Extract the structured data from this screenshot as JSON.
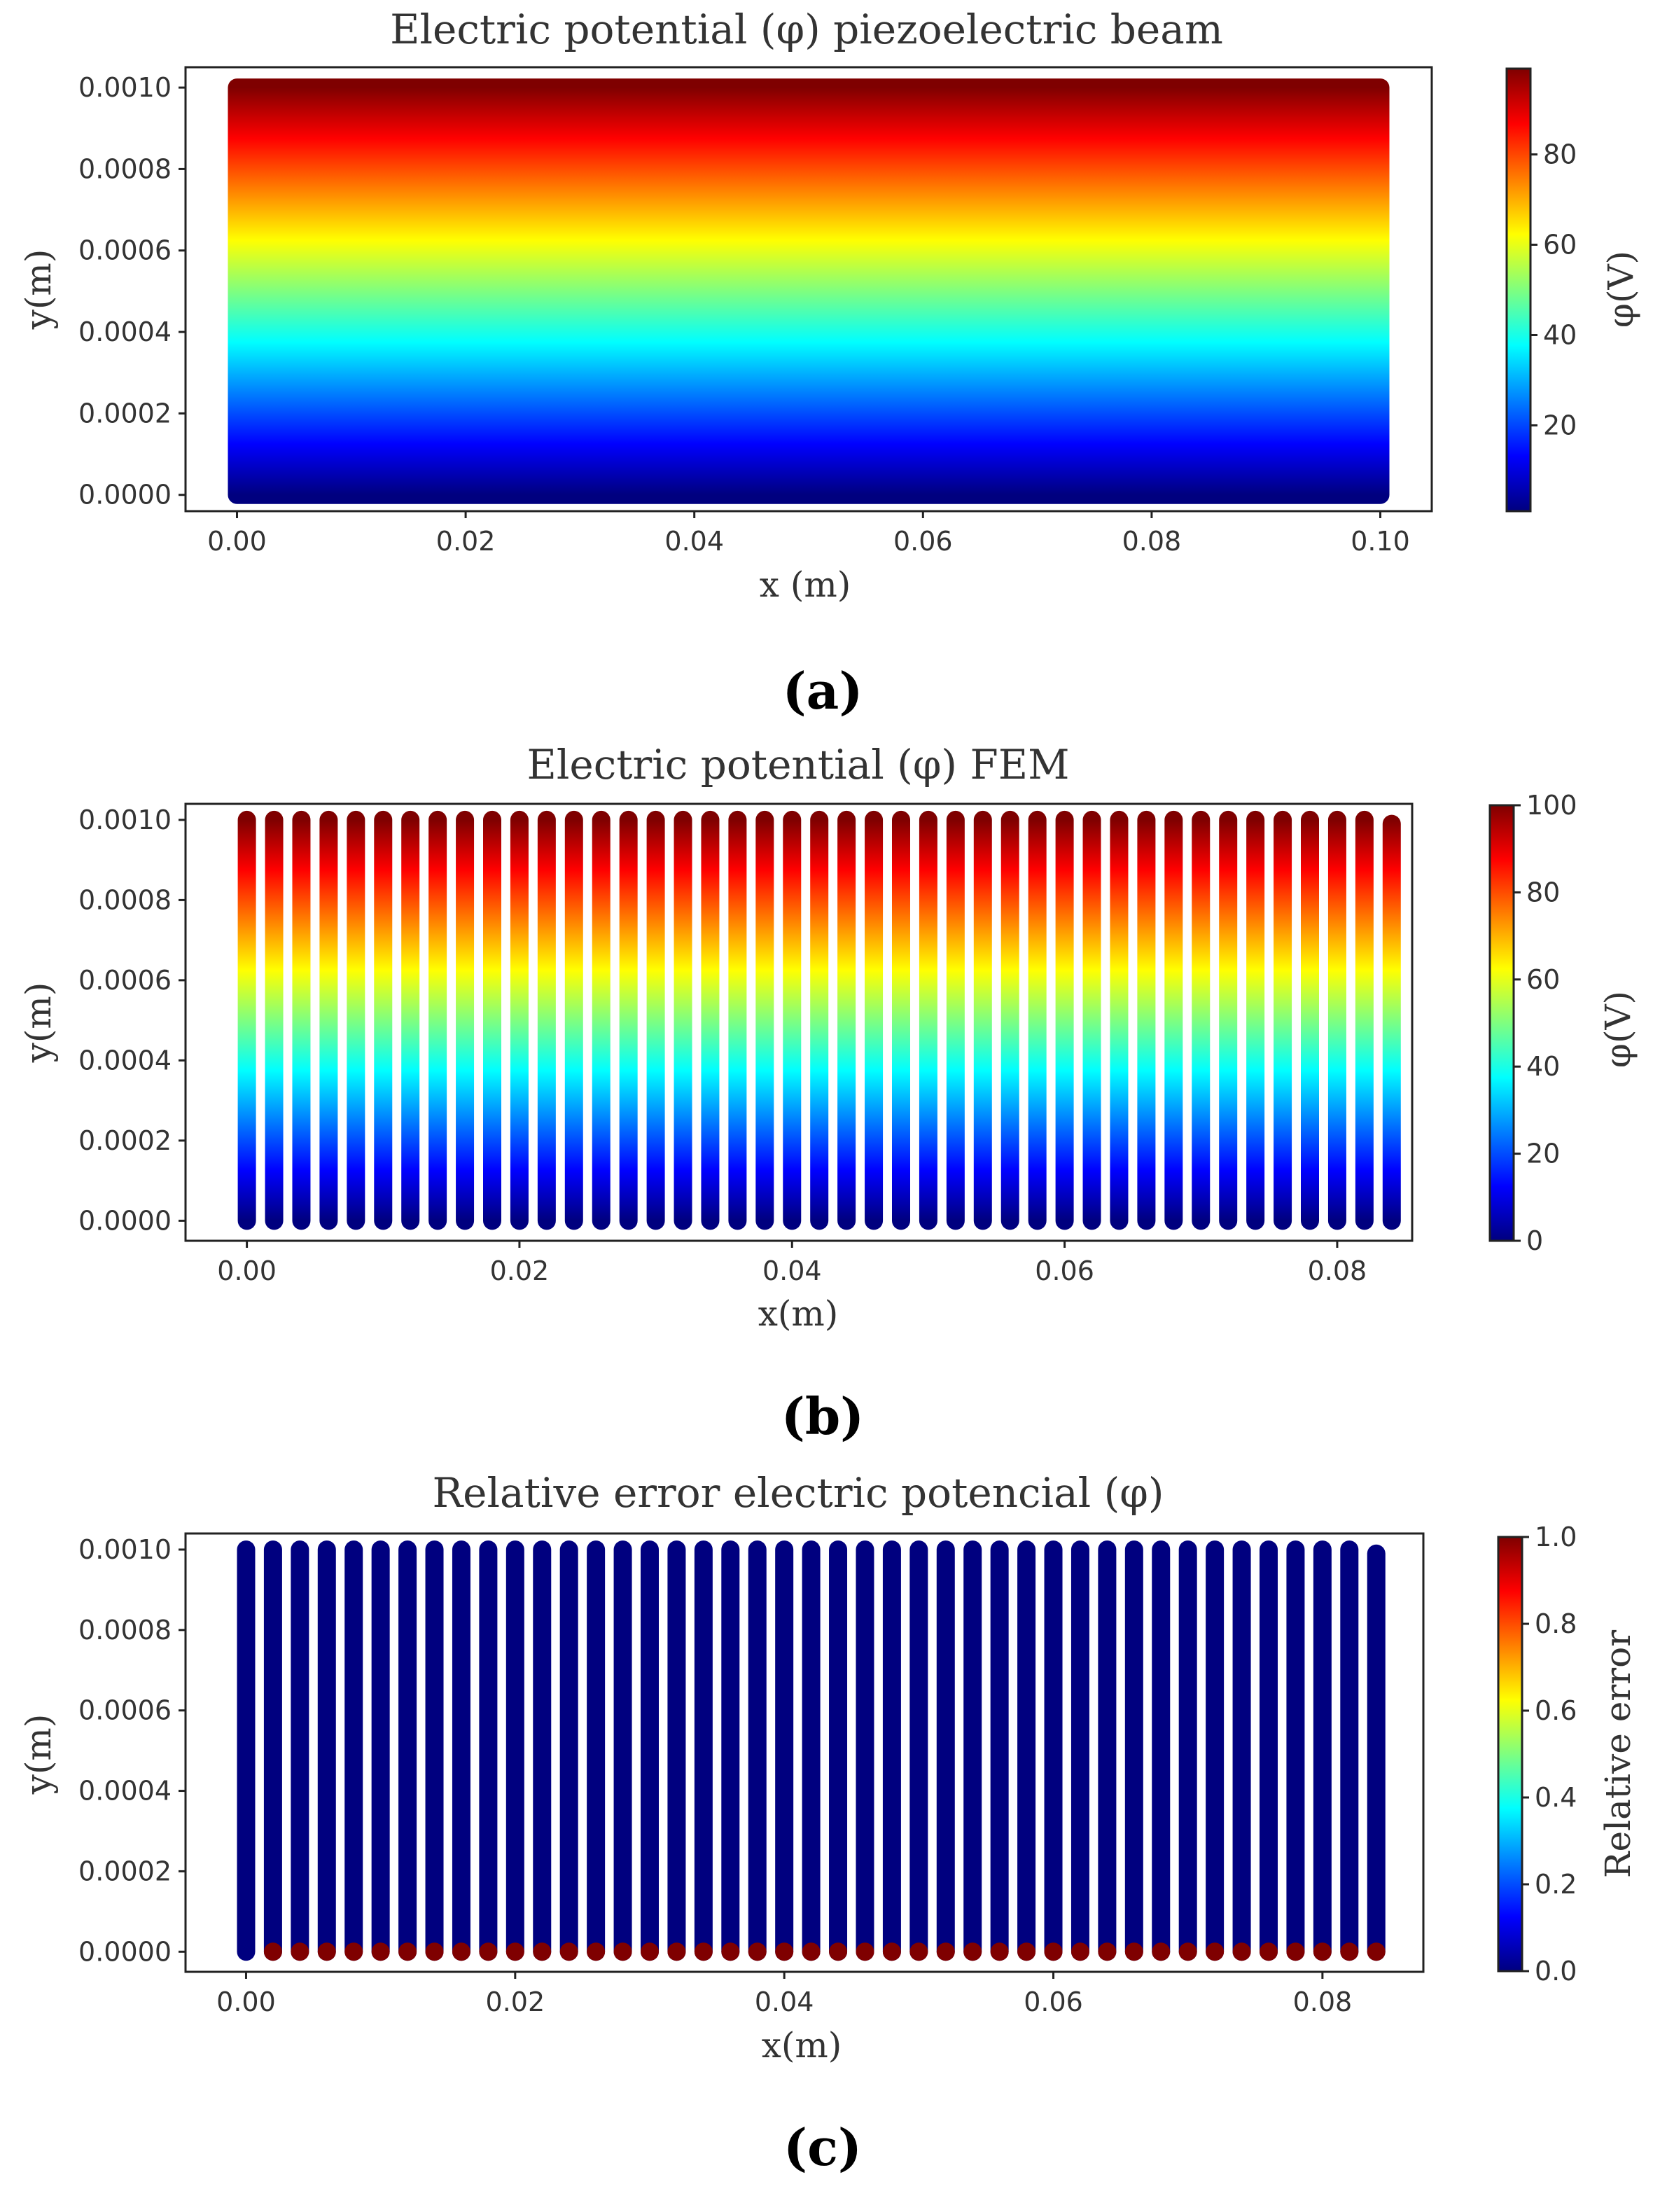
{
  "colormap": [
    "#00007f",
    "#0000ff",
    "#007fff",
    "#00ffff",
    "#7fff7f",
    "#ffff00",
    "#ff7f00",
    "#ff0000",
    "#7f0000"
  ],
  "chart_data": [
    {
      "type": "scatter",
      "panel_label": "(a)",
      "title": "Electric potential (φ) piezoelectric beam",
      "xlabel": "x (m)",
      "ylabel": "y(m)",
      "colorbar_label": "φ(V)",
      "xlim": [
        -0.0045,
        0.1045
      ],
      "ylim": [
        -4e-05,
        0.00105
      ],
      "xticks": [
        "0.00",
        "0.02",
        "0.04",
        "0.06",
        "0.08",
        "0.10"
      ],
      "yticks": [
        "0.0000",
        "0.0002",
        "0.0004",
        "0.0006",
        "0.0008",
        "0.0010"
      ],
      "colorbar_range": [
        1,
        99
      ],
      "colorbar_ticks": [
        "20",
        "40",
        "60",
        "80"
      ],
      "field": "φ increases linearly with y, from about 0 V at y = 0 to 100 V at y = 0.0010 m, uniform in x",
      "grid": "dense",
      "x_range": [
        0.0,
        0.1
      ],
      "y_range": [
        0.0,
        0.001
      ],
      "value_range": [
        0,
        100
      ]
    },
    {
      "type": "scatter",
      "panel_label": "(b)",
      "title": "Electric potential (φ) FEM",
      "xlabel": "x(m)",
      "ylabel": "y(m)",
      "colorbar_label": "φ(V)",
      "xlim": [
        -0.0045,
        0.0855
      ],
      "ylim": [
        -5e-05,
        0.00104
      ],
      "xticks": [
        "0.00",
        "0.02",
        "0.04",
        "0.06",
        "0.08"
      ],
      "yticks": [
        "0.0000",
        "0.0002",
        "0.0004",
        "0.0006",
        "0.0008",
        "0.0010"
      ],
      "colorbar_range": [
        0,
        100
      ],
      "colorbar_ticks": [
        "0",
        "20",
        "40",
        "60",
        "80",
        "100"
      ],
      "field": "φ increases linearly with y, from 0 V at y = 0 to 100 V at y = 0.0010 m",
      "x_columns": {
        "start": 0.0,
        "step": 0.002,
        "count": 43
      },
      "last_column_top": 0.00099,
      "y_range": [
        0.0,
        0.001
      ],
      "value_range": [
        0,
        100
      ]
    },
    {
      "type": "scatter",
      "panel_label": "(c)",
      "title": "Relative error electric potencial (φ)",
      "xlabel": "x(m)",
      "ylabel": "y(m)",
      "colorbar_label": "Relative error",
      "xlim": [
        -0.0045,
        0.0875
      ],
      "ylim": [
        -5e-05,
        0.00104
      ],
      "xticks": [
        "0.00",
        "0.02",
        "0.04",
        "0.06",
        "0.08"
      ],
      "yticks": [
        "0.0000",
        "0.0002",
        "0.0004",
        "0.0006",
        "0.0008",
        "0.0010"
      ],
      "colorbar_range": [
        0,
        1
      ],
      "colorbar_ticks": [
        "0.0",
        "0.2",
        "0.4",
        "0.6",
        "0.8",
        "1.0"
      ],
      "field": "relative error ≈ 0 everywhere except ≈ 1.0 at y = 0 for every column except x = 0",
      "x_columns": {
        "start": 0.0,
        "step": 0.002,
        "count": 43
      },
      "last_column_top": 0.00099,
      "y_range": [
        0.0,
        0.001
      ],
      "value_range": [
        0,
        1
      ],
      "body_value": 0.0,
      "bottom_row_value": 1.0
    }
  ]
}
